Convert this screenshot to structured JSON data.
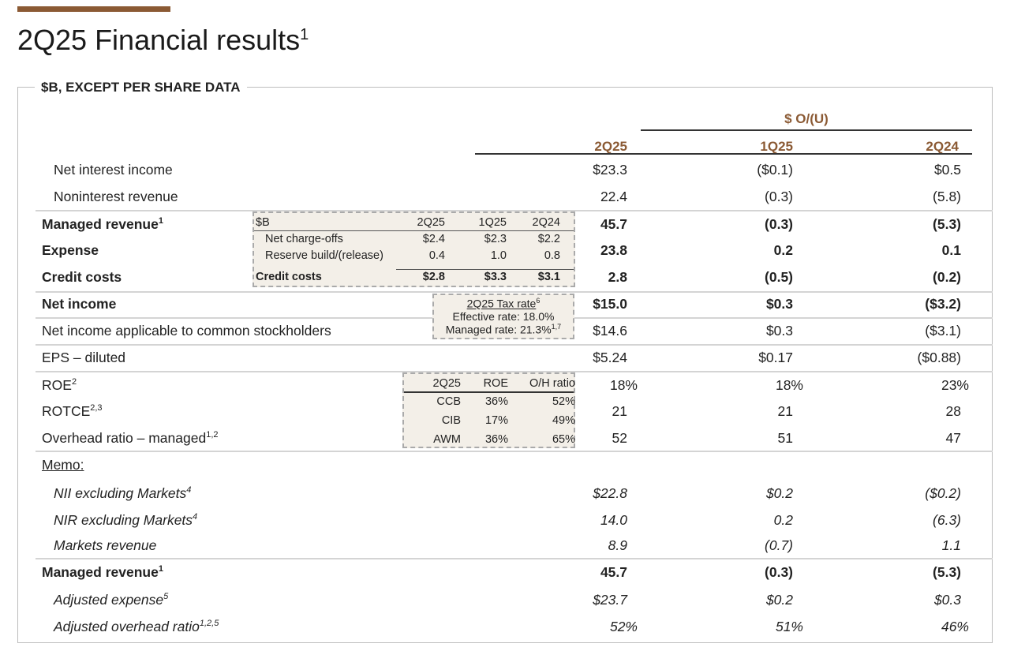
{
  "title": {
    "text": "2Q25 Financial results",
    "sup": "1"
  },
  "subtitle": "$B, EXCEPT PER SHARE DATA",
  "header": {
    "group": "$ O/(U)",
    "cols": [
      "2Q25",
      "1Q25",
      "2Q24"
    ]
  },
  "rows": [
    {
      "label": "Net interest income",
      "sup": "",
      "values": [
        "$23.3",
        "($0.1)",
        "$0.5"
      ],
      "style": "ind"
    },
    {
      "label": "Noninterest revenue",
      "sup": "",
      "values": [
        "22.4",
        "(0.3)",
        "(5.8)"
      ],
      "style": "ind"
    },
    {
      "label": "Managed revenue",
      "sup": "1",
      "values": [
        "45.7",
        "(0.3)",
        "(5.3)"
      ],
      "style": "b"
    },
    {
      "label": "Expense",
      "sup": "",
      "values": [
        "23.8",
        "0.2",
        "0.1"
      ],
      "style": "b"
    },
    {
      "label": "Credit costs",
      "sup": "",
      "values": [
        "2.8",
        "(0.5)",
        "(0.2)"
      ],
      "style": "b"
    },
    {
      "label": "Net income",
      "sup": "",
      "values": [
        "$15.0",
        "$0.3",
        "($3.2)"
      ],
      "style": "b"
    },
    {
      "label": "Net income applicable to common stockholders",
      "sup": "",
      "values": [
        "$14.6",
        "$0.3",
        "($3.1)"
      ],
      "style": ""
    },
    {
      "label": "EPS – diluted",
      "sup": "",
      "values": [
        "$5.24",
        "$0.17",
        "($0.88)"
      ],
      "style": ""
    },
    {
      "label": "ROE",
      "sup": "2",
      "values": [
        "18%",
        "18%",
        "23%"
      ],
      "style": "pct"
    },
    {
      "label": "ROTCE",
      "sup": "2,3",
      "values": [
        "21",
        "21",
        "28"
      ],
      "style": ""
    },
    {
      "label": "Overhead ratio – managed",
      "sup": "1,2",
      "values": [
        "52",
        "51",
        "47"
      ],
      "style": ""
    },
    {
      "label": "Memo:",
      "sup": "",
      "values": [
        "",
        "",
        ""
      ],
      "style": "memo"
    },
    {
      "label": "NII excluding Markets",
      "sup": "4",
      "values": [
        "$22.8",
        "$0.2",
        "($0.2)"
      ],
      "style": "ind i"
    },
    {
      "label": "NIR excluding Markets",
      "sup": "4",
      "values": [
        "14.0",
        "0.2",
        "(6.3)"
      ],
      "style": "ind i"
    },
    {
      "label": "Markets revenue",
      "sup": "",
      "values": [
        "8.9",
        "(0.7)",
        "1.1"
      ],
      "style": "ind i"
    },
    {
      "label": "Managed revenue",
      "sup": "1",
      "values": [
        "45.7",
        "(0.3)",
        "(5.3)"
      ],
      "style": "b"
    },
    {
      "label": "Adjusted expense",
      "sup": "5",
      "values": [
        "$23.7",
        "$0.2",
        "$0.3"
      ],
      "style": "ind i"
    },
    {
      "label": "Adjusted overhead ratio",
      "sup": "1,2,5",
      "values": [
        "52%",
        "51%",
        "46%"
      ],
      "style": "ind i pct"
    }
  ],
  "credit_box": {
    "header": [
      "$B",
      "2Q25",
      "1Q25",
      "2Q24"
    ],
    "rows": [
      [
        "Net charge-offs",
        "$2.4",
        "$2.3",
        "$2.2"
      ],
      [
        "Reserve build/(release)",
        "0.4",
        "1.0",
        "0.8"
      ],
      [
        "Credit costs",
        "$2.8",
        "$3.3",
        "$3.1"
      ]
    ]
  },
  "tax_box": {
    "title": "2Q25 Tax rate",
    "title_sup": "6",
    "effective": "Effective rate: 18.0%",
    "managed": "Managed rate: 21.3%",
    "managed_sup": "1,7"
  },
  "roe_box": {
    "header": [
      "2Q25",
      "ROE",
      "O/H ratio"
    ],
    "rows": [
      [
        "CCB",
        "36%",
        "52%"
      ],
      [
        "CIB",
        "17%",
        "49%"
      ],
      [
        "AWM",
        "36%",
        "65%"
      ]
    ]
  }
}
